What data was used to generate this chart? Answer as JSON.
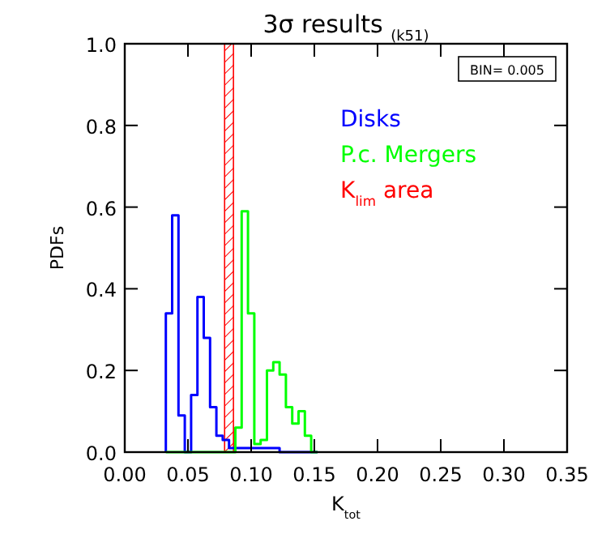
{
  "chart_data": {
    "type": "histogram",
    "title": "3σ results $_{(k51)}$",
    "xlabel": "K$_{tot}$",
    "ylabel": "PDFs",
    "bins": [
      0.0325,
      0.0375,
      0.0425,
      0.0475,
      0.0525,
      0.0575,
      0.0625,
      0.0675,
      0.0725,
      0.0775,
      0.0825,
      0.0875,
      0.0925,
      0.0975,
      0.1025,
      0.1075,
      0.1125,
      0.1175,
      0.1225,
      0.1275,
      0.1325,
      0.1375,
      0.1425,
      0.1475,
      0.1525
    ],
    "series": [
      {
        "name": "Disks",
        "color": "#0000ff",
        "values": [
          0.34,
          0.58,
          0.09,
          0,
          0.14,
          0.38,
          0.28,
          0.11,
          0.04,
          0.03,
          0.01,
          0.01,
          0.01,
          0.01,
          0.01,
          0.01,
          0.01,
          0.01,
          0,
          0,
          0,
          0,
          0,
          0
        ]
      },
      {
        "name": "P.c. Mergers",
        "color": "#00ff00",
        "values": [
          0,
          0,
          0,
          0,
          0,
          0,
          0,
          0,
          0,
          0,
          0,
          0.06,
          0.59,
          0.34,
          0.02,
          0.03,
          0.2,
          0.22,
          0.19,
          0.11,
          0.07,
          0.1,
          0.04,
          0
        ]
      }
    ],
    "bands": [
      {
        "axis": "x",
        "from": 0.079,
        "to": 0.086,
        "label": "K$_{lim}$ area",
        "color": "#ff0000"
      }
    ],
    "annotations": [
      "BIN= 0.005"
    ],
    "xlim": [
      0,
      0.35
    ],
    "xticks": [
      {
        "value": 0,
        "label": "0.00"
      },
      0.05,
      {
        "value": 0.1,
        "label": "0.10"
      },
      0.15,
      {
        "value": 0.2,
        "label": "0.20"
      },
      0.25,
      {
        "value": 0.3,
        "label": "0.30"
      },
      0.35
    ],
    "ylim": [
      0,
      1
    ],
    "yticks": [
      {
        "value": 0,
        "label": "0.0"
      },
      0.2,
      0.4,
      0.6,
      0.8,
      {
        "value": 1,
        "label": "1.0"
      }
    ],
    "grid": false,
    "legend": "top right"
  }
}
